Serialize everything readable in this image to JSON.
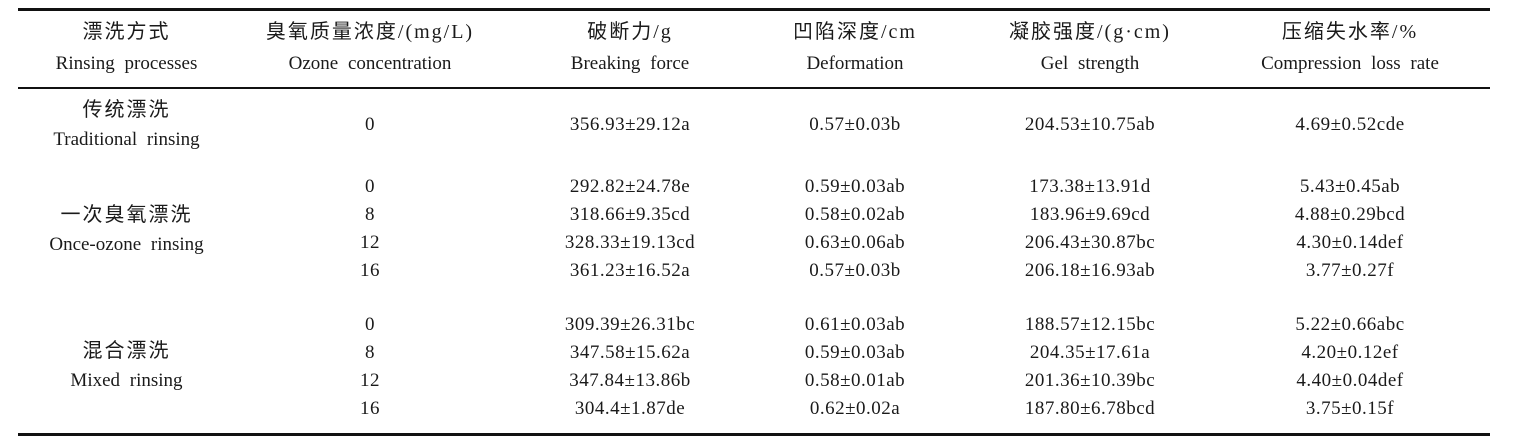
{
  "table": {
    "colors": {
      "background": "#ffffff",
      "rule": "#111111",
      "text": "#1a1a1a"
    },
    "columns": [
      {
        "zh": "漂洗方式",
        "en": "Rinsing processes"
      },
      {
        "zh": "臭氧质量浓度/(mg/L)",
        "en": "Ozone concentration"
      },
      {
        "zh": "破断力/g",
        "en": "Breaking force"
      },
      {
        "zh": "凹陷深度/cm",
        "en": "Deformation"
      },
      {
        "zh": "凝胶强度/(g·cm)",
        "en": "Gel strength"
      },
      {
        "zh": "压缩失水率/%",
        "en": "Compression loss rate"
      }
    ],
    "groups": [
      {
        "zh": "传统漂洗",
        "en": "Traditional rinsing",
        "rows": [
          {
            "ozone": "0",
            "breaking_force": "356.93±29.12a",
            "deformation": "0.57±0.03b",
            "gel_strength": "204.53±10.75ab",
            "compression_loss_rate": "4.69±0.52cde"
          }
        ]
      },
      {
        "zh": "一次臭氧漂洗",
        "en": "Once-ozone rinsing",
        "rows": [
          {
            "ozone": "0",
            "breaking_force": "292.82±24.78e",
            "deformation": "0.59±0.03ab",
            "gel_strength": "173.38±13.91d",
            "compression_loss_rate": "5.43±0.45ab"
          },
          {
            "ozone": "8",
            "breaking_force": "318.66±9.35cd",
            "deformation": "0.58±0.02ab",
            "gel_strength": "183.96±9.69cd",
            "compression_loss_rate": "4.88±0.29bcd"
          },
          {
            "ozone": "12",
            "breaking_force": "328.33±19.13cd",
            "deformation": "0.63±0.06ab",
            "gel_strength": "206.43±30.87bc",
            "compression_loss_rate": "4.30±0.14def"
          },
          {
            "ozone": "16",
            "breaking_force": "361.23±16.52a",
            "deformation": "0.57±0.03b",
            "gel_strength": "206.18±16.93ab",
            "compression_loss_rate": "3.77±0.27f"
          }
        ]
      },
      {
        "zh": "混合漂洗",
        "en": "Mixed rinsing",
        "rows": [
          {
            "ozone": "0",
            "breaking_force": "309.39±26.31bc",
            "deformation": "0.61±0.03ab",
            "gel_strength": "188.57±12.15bc",
            "compression_loss_rate": "5.22±0.66abc"
          },
          {
            "ozone": "8",
            "breaking_force": "347.58±15.62a",
            "deformation": "0.59±0.03ab",
            "gel_strength": "204.35±17.61a",
            "compression_loss_rate": "4.20±0.12ef"
          },
          {
            "ozone": "12",
            "breaking_force": "347.84±13.86b",
            "deformation": "0.58±0.01ab",
            "gel_strength": "201.36±10.39bc",
            "compression_loss_rate": "4.40±0.04def"
          },
          {
            "ozone": "16",
            "breaking_force": "304.4±1.87de",
            "deformation": "0.62±0.02a",
            "gel_strength": "187.80±6.78bcd",
            "compression_loss_rate": "3.75±0.15f"
          }
        ]
      }
    ]
  }
}
